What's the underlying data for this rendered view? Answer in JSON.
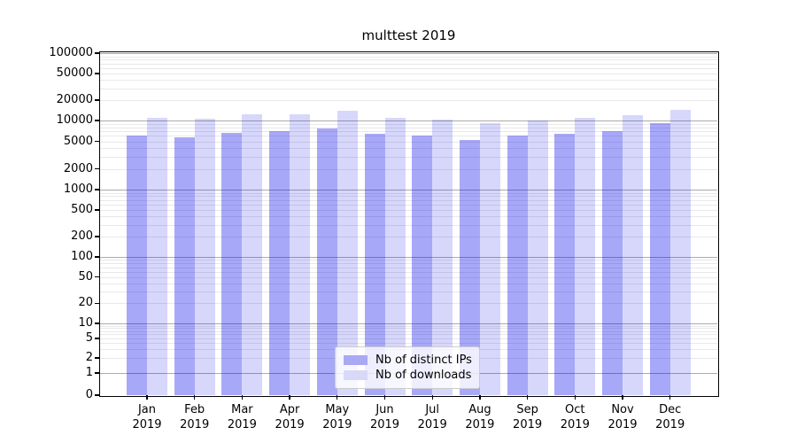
{
  "chart_data": {
    "type": "bar",
    "title": "multtest 2019",
    "categories": [
      "Jan",
      "Feb",
      "Mar",
      "Apr",
      "May",
      "Jun",
      "Jul",
      "Aug",
      "Sep",
      "Oct",
      "Nov",
      "Dec"
    ],
    "year_label": "2019",
    "series": [
      {
        "name": "Nb of distinct IPs",
        "color": "rgba(0,0,235,0.34)",
        "swatch": "#a9a9f4",
        "values": [
          6100,
          5800,
          6600,
          7000,
          7700,
          6400,
          6100,
          5200,
          6100,
          6500,
          7000,
          9300
        ]
      },
      {
        "name": "Nb of downloads",
        "color": "rgba(0,0,235,0.155)",
        "swatch": "#d8d8f8",
        "values": [
          11000,
          10700,
          12400,
          12200,
          14000,
          11000,
          10400,
          9300,
          9900,
          11100,
          11900,
          14600
        ]
      }
    ],
    "yticks": [
      100000,
      50000,
      20000,
      10000,
      5000,
      2000,
      1000,
      500,
      200,
      100,
      50,
      20,
      10,
      5,
      2,
      1,
      0
    ],
    "xlabel": "",
    "ylabel": "",
    "ylim": [
      0,
      100000
    ],
    "yscale": "symlog",
    "grid": true,
    "legend_position": "lower-center-inside",
    "colors": {
      "major_grid": "#ababab",
      "minor_grid": "#e8e8e8",
      "spine": "#000000",
      "background": "#ffffff",
      "bar_distinct_ips": "#a9a9f4",
      "bar_downloads": "#d8d8f8"
    }
  }
}
